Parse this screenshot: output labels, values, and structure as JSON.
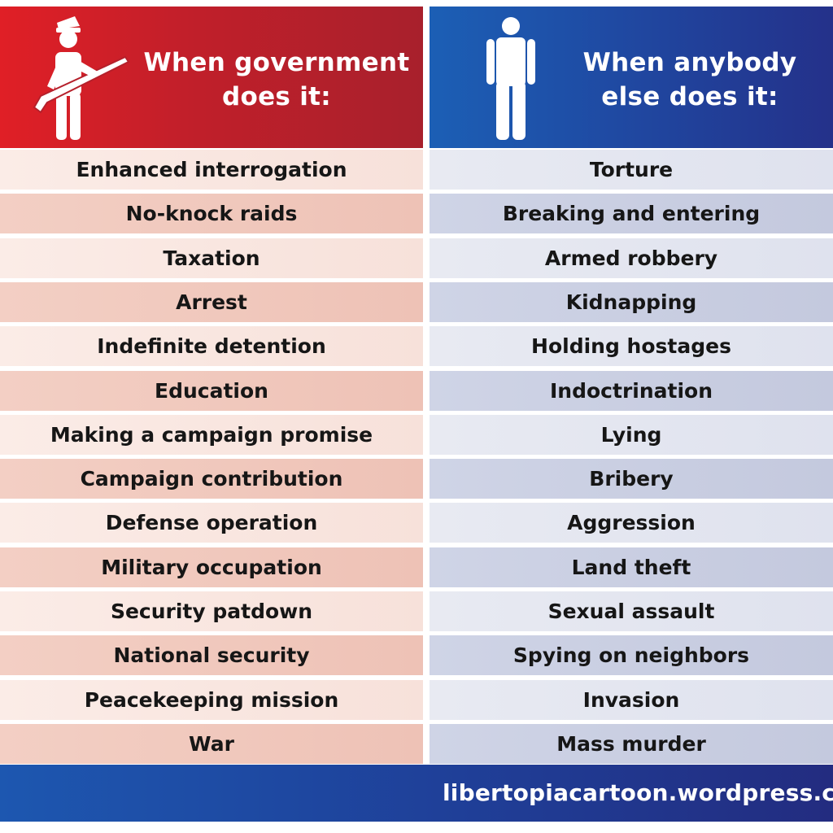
{
  "header": {
    "left_title_line1": "When government",
    "left_title_line2": "does it:",
    "right_title_line1": "When anybody",
    "right_title_line2": "else does it:",
    "left_icon": "soldier-with-rifle-icon",
    "right_icon": "person-icon"
  },
  "rows": [
    {
      "left": "Enhanced interrogation",
      "right": "Torture"
    },
    {
      "left": "No-knock raids",
      "right": "Breaking and entering"
    },
    {
      "left": "Taxation",
      "right": "Armed robbery"
    },
    {
      "left": "Arrest",
      "right": "Kidnapping"
    },
    {
      "left": "Indefinite detention",
      "right": "Holding hostages"
    },
    {
      "left": "Education",
      "right": "Indoctrination"
    },
    {
      "left": "Making a campaign promise",
      "right": "Lying"
    },
    {
      "left": "Campaign contribution",
      "right": "Bribery"
    },
    {
      "left": "Defense operation",
      "right": "Aggression"
    },
    {
      "left": "Military occupation",
      "right": "Land theft"
    },
    {
      "left": "Security patdown",
      "right": "Sexual assault"
    },
    {
      "left": "National security",
      "right": "Spying on neighbors"
    },
    {
      "left": "Peacekeeping mission",
      "right": "Invasion"
    },
    {
      "left": "War",
      "right": "Mass murder"
    }
  ],
  "footer": {
    "url": "libertopiacartoon.wordpress.com"
  },
  "colors": {
    "red_header": "#c11f2a",
    "blue_header": "#1f4aa3",
    "text": "#161616"
  }
}
